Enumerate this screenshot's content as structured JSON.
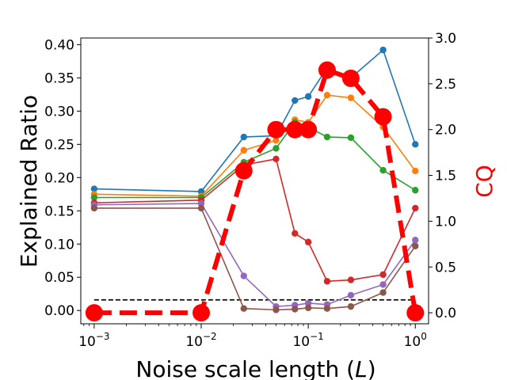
{
  "chart_data": {
    "type": "line",
    "xscale": "log",
    "xlim": [
      0.00075,
      1.33
    ],
    "ylim": [
      -0.02,
      0.41
    ],
    "y2lim": [
      -0.12,
      3.0
    ],
    "xticks": [
      {
        "value": 0.001,
        "label": "10",
        "exp": "−3"
      },
      {
        "value": 0.01,
        "label": "10",
        "exp": "−2"
      },
      {
        "value": 0.1,
        "label": "10",
        "exp": "−1"
      },
      {
        "value": 1,
        "label": "10",
        "exp": "0"
      }
    ],
    "yticks": [
      "0.00",
      "0.05",
      "0.10",
      "0.15",
      "0.20",
      "0.25",
      "0.30",
      "0.35",
      "0.40"
    ],
    "y2ticks": [
      "0.0",
      "0.5",
      "1.0",
      "1.5",
      "2.0",
      "2.5",
      "3.0"
    ],
    "xlabel": "Noise scale length (",
    "xlabel_var": "L",
    "xlabel_end": ")",
    "ylabel": "Explained Ratio",
    "y2label": "CQ",
    "x": [
      0.001,
      0.01,
      0.025,
      0.05,
      0.075,
      0.1,
      0.15,
      0.25,
      0.5,
      1.0
    ],
    "series": [
      {
        "name": "series-blue",
        "color": "#1f77b4",
        "values": [
          0.183,
          0.179,
          0.261,
          0.263,
          0.316,
          0.322,
          0.365,
          0.35,
          0.392,
          0.25
        ]
      },
      {
        "name": "series-orange",
        "color": "#ff7f0e",
        "values": [
          0.175,
          0.172,
          0.241,
          0.256,
          0.287,
          0.283,
          0.324,
          0.32,
          0.276,
          0.21
        ]
      },
      {
        "name": "series-green",
        "color": "#2ca02c",
        "values": [
          0.17,
          0.17,
          0.223,
          0.244,
          0.283,
          0.276,
          0.261,
          0.26,
          0.211,
          0.181
        ]
      },
      {
        "name": "series-red",
        "color": "#d62728",
        "values": [
          0.162,
          0.166,
          0.219,
          0.228,
          0.116,
          0.103,
          0.044,
          0.046,
          0.054,
          0.154
        ]
      },
      {
        "name": "series-purple",
        "color": "#9467bd",
        "values": [
          0.159,
          0.161,
          0.052,
          0.006,
          0.008,
          0.011,
          0.009,
          0.023,
          0.039,
          0.106
        ]
      },
      {
        "name": "series-brown",
        "color": "#8c564b",
        "values": [
          0.154,
          0.154,
          0.003,
          0.001,
          0.002,
          0.004,
          0.003,
          0.006,
          0.027,
          0.097
        ]
      }
    ],
    "cq_series": {
      "name": "CQ",
      "color": "#ff0000",
      "values": [
        0.0,
        0.0,
        1.55,
        2.0,
        2.0,
        2.0,
        2.65,
        2.56,
        2.14,
        0.0
      ]
    },
    "baseline": {
      "value": 0.016,
      "color": "#000000",
      "style": "dashed"
    }
  }
}
